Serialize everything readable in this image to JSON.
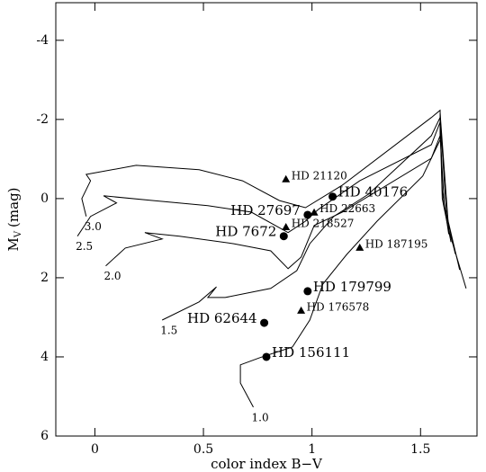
{
  "chart_data": {
    "type": "scatter",
    "x_label": "color index B−V",
    "y_label": {
      "symbol": "M",
      "subscript": "V",
      "unit": "(mag)"
    },
    "xlim": [
      -0.18,
      1.76
    ],
    "ylim": [
      6,
      -4.95
    ],
    "xticks": [
      0,
      0.5,
      1,
      1.5
    ],
    "yticks": [
      -4,
      -2,
      0,
      2,
      4,
      6
    ],
    "color": "#000000",
    "tracks": [
      {
        "name": "1.0",
        "x": [
          0.73,
          0.67,
          0.67,
          0.76,
          0.91,
          0.99,
          1.05,
          1.16,
          1.3,
          1.51,
          1.59,
          1.59,
          1.63,
          1.71
        ],
        "values": [
          5.27,
          4.66,
          4.2,
          4.02,
          3.75,
          3.07,
          2.16,
          1.41,
          0.57,
          -0.57,
          -1.48,
          -2.16,
          0.8,
          2.27
        ]
      },
      {
        "name": "1.5",
        "x": [
          0.31,
          0.48,
          0.56,
          0.52,
          0.6,
          0.81,
          0.93,
          0.99,
          1.1,
          1.26,
          1.55,
          1.59,
          1.62,
          1.68
        ],
        "values": [
          3.07,
          2.61,
          2.23,
          2.5,
          2.5,
          2.27,
          1.82,
          1.14,
          0.45,
          -0.11,
          -1.59,
          -2.05,
          0.4,
          1.8
        ]
      },
      {
        "name": "2.0",
        "x": [
          0.05,
          0.14,
          0.31,
          0.23,
          0.39,
          0.64,
          0.81,
          0.89,
          0.95,
          1.01,
          1.14,
          1.55,
          1.59,
          1.61,
          1.66
        ],
        "values": [
          1.7,
          1.25,
          1.02,
          0.86,
          0.95,
          1.14,
          1.32,
          1.77,
          1.48,
          0.68,
          0.34,
          -1.02,
          -1.59,
          0.2,
          1.4
        ]
      },
      {
        "name": "2.5",
        "x": [
          -0.08,
          -0.02,
          0.1,
          0.04,
          0.27,
          0.52,
          0.72,
          0.89,
          0.97,
          1.03,
          1.22,
          1.55,
          1.59,
          1.6,
          1.64
        ],
        "values": [
          0.95,
          0.45,
          0.11,
          -0.07,
          0.05,
          0.18,
          0.34,
          0.86,
          0.57,
          0.27,
          -0.45,
          -1.36,
          -1.93,
          0.0,
          1.1
        ]
      },
      {
        "name": "3.0",
        "x": [
          -0.04,
          -0.06,
          -0.02,
          -0.04,
          0.19,
          0.48,
          0.68,
          0.85,
          0.97,
          1.14,
          1.55,
          1.59,
          1.6,
          1.63
        ],
        "values": [
          0.45,
          0.0,
          -0.45,
          -0.61,
          -0.84,
          -0.73,
          -0.45,
          0.05,
          0.23,
          -0.34,
          -2.05,
          -2.23,
          -0.2,
          0.9
        ]
      }
    ],
    "series": [
      {
        "marker": "circle",
        "x": [
          1.095,
          0.98,
          0.87,
          0.98,
          0.78,
          0.79
        ],
        "values": [
          -0.05,
          0.41,
          0.95,
          2.34,
          3.14,
          4.0
        ],
        "labels": [
          "HD 40176",
          "HD 27697",
          "HD 7672",
          "HD 179799",
          "HD 62644",
          "HD 156111"
        ]
      },
      {
        "marker": "triangle",
        "x": [
          0.88,
          1.01,
          0.88,
          1.22,
          0.95
        ],
        "values": [
          -0.48,
          0.36,
          0.73,
          1.25,
          2.84
        ],
        "labels": [
          "HD 21120",
          "HD 22663",
          "HD 218527",
          "HD 187195",
          "HD 176578"
        ]
      }
    ]
  }
}
